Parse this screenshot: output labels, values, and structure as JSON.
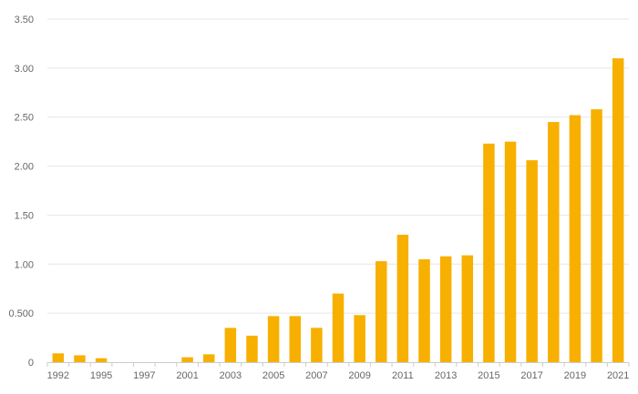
{
  "chart_data": {
    "type": "bar",
    "categories": [
      "1992",
      "1993",
      "1995",
      "1996",
      "1997",
      "1999",
      "2001",
      "2002",
      "2003",
      "2004",
      "2005",
      "2006",
      "2007",
      "2008",
      "2009",
      "2010",
      "2011",
      "2012",
      "2013",
      "2014",
      "2015",
      "2016",
      "2017",
      "2018",
      "2019",
      "2020",
      "2021"
    ],
    "values": [
      0.09,
      0.07,
      0.04,
      0,
      0,
      0,
      0.05,
      0.08,
      0.35,
      0.27,
      0.47,
      0.47,
      0.35,
      0.7,
      0.48,
      1.03,
      1.3,
      1.05,
      1.08,
      1.09,
      2.23,
      2.25,
      2.06,
      2.45,
      2.52,
      2.58,
      3.1
    ],
    "x_tick_labels": [
      "1992",
      "1995",
      "1997",
      "2001",
      "2003",
      "2005",
      "2007",
      "2009",
      "2011",
      "2013",
      "2015",
      "2017",
      "2019",
      "2021"
    ],
    "y_ticks": [
      "0",
      "0.500",
      "1.00",
      "1.50",
      "2.00",
      "2.50",
      "3.00",
      "3.50"
    ],
    "ylim": [
      0,
      3.5
    ],
    "grid": true,
    "bar_color": "#f7b000",
    "title": "",
    "xlabel": "",
    "ylabel": ""
  }
}
